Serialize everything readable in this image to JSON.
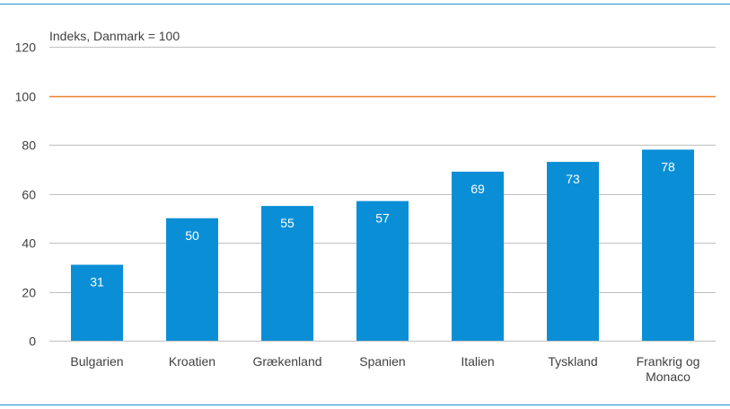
{
  "chart_data": {
    "type": "bar",
    "unit_label": "Indeks, Danmark = 100",
    "categories": [
      [
        "Bulgarien"
      ],
      [
        "Kroatien"
      ],
      [
        "Grækenland"
      ],
      [
        "Spanien"
      ],
      [
        "Italien"
      ],
      [
        "Tyskland"
      ],
      [
        "Frankrig og",
        "Monaco"
      ]
    ],
    "values": [
      31,
      50,
      55,
      57,
      69,
      73,
      78
    ],
    "ylim": [
      0,
      120
    ],
    "yticks": [
      0,
      20,
      40,
      60,
      80,
      100,
      120
    ],
    "reference_line": {
      "value": 100,
      "color": "#e8822f"
    },
    "grid": true,
    "colors": {
      "bar": "#0a8fd6",
      "grid": "#bfbfbf",
      "rule": "#1f8fd0",
      "value_label": "#ffffff"
    }
  }
}
